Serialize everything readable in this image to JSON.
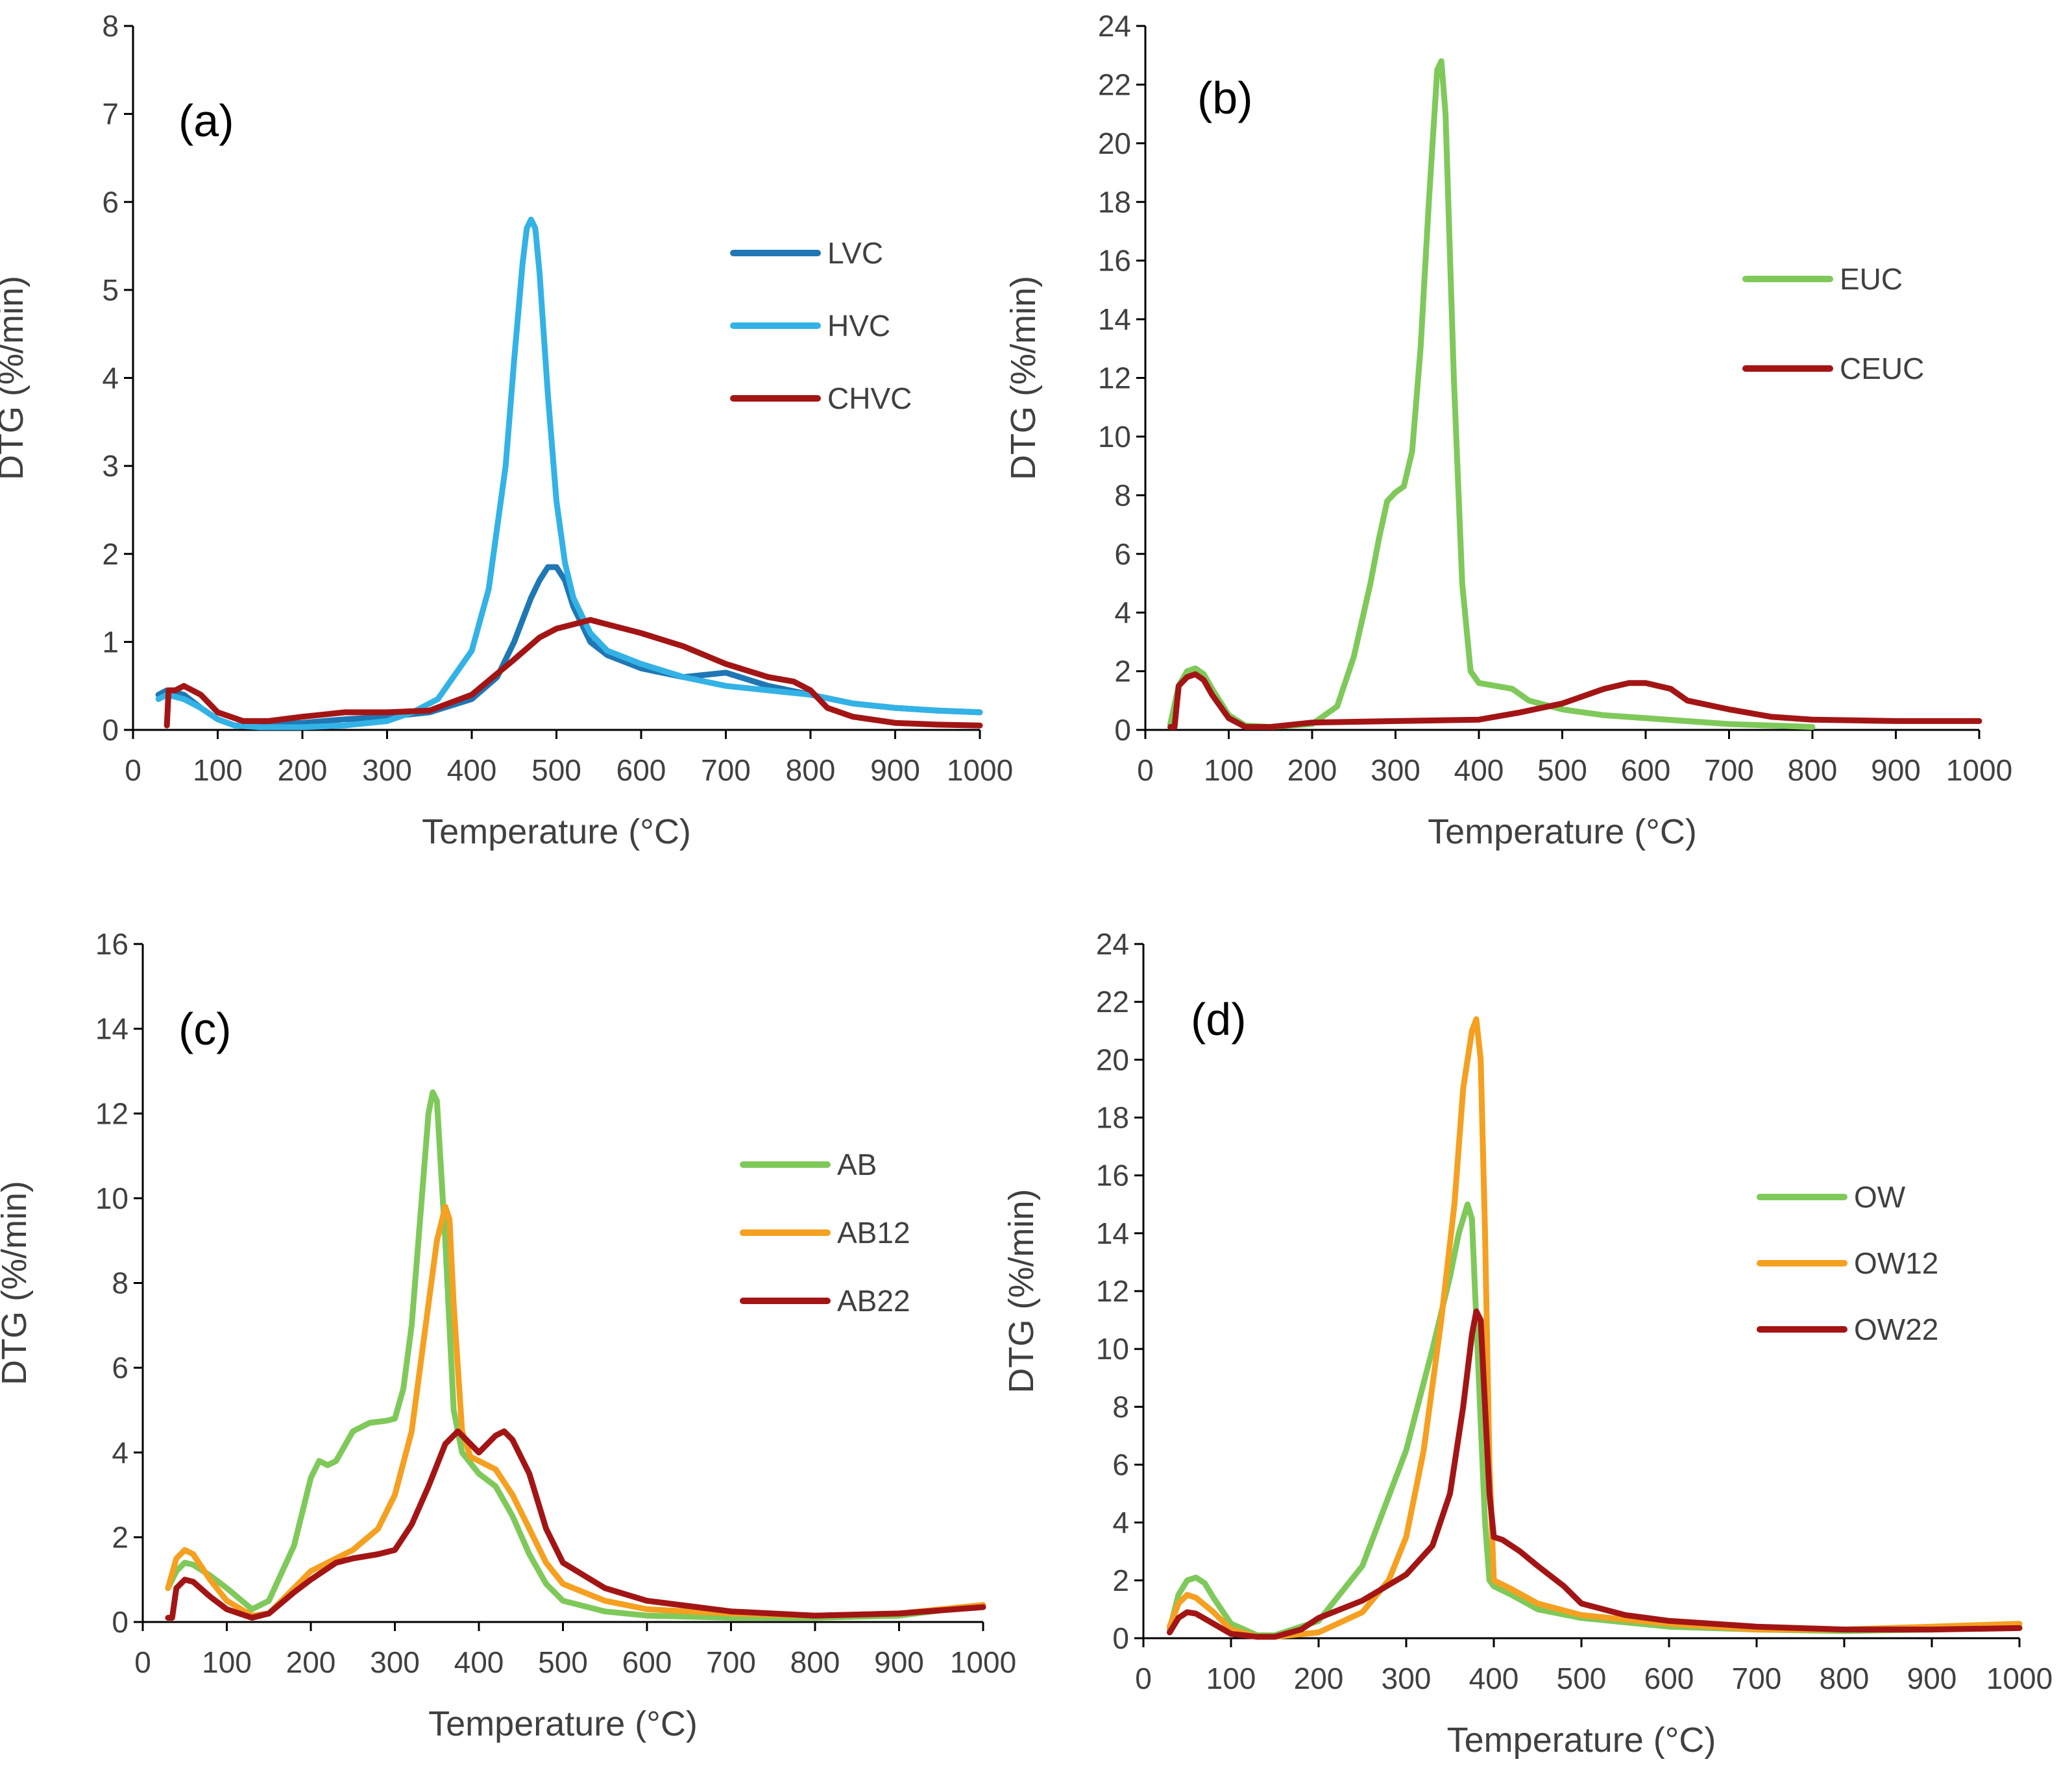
{
  "figure": {
    "panel_count": 4
  },
  "chart_data": [
    {
      "id": "a",
      "type": "line",
      "panel_label": "(a)",
      "xlabel": "Temperature (°C)",
      "ylabel": "DTG (%/min)",
      "xlim": [
        0,
        1000
      ],
      "ylim": [
        0,
        8
      ],
      "xticks": [
        0,
        100,
        200,
        300,
        400,
        500,
        600,
        700,
        800,
        900,
        1000
      ],
      "yticks": [
        0,
        1,
        2,
        3,
        4,
        5,
        6,
        7,
        8
      ],
      "series": [
        {
          "name": "LVC",
          "color": "#1F77B4",
          "x": [
            30,
            40,
            60,
            80,
            100,
            120,
            150,
            200,
            250,
            300,
            350,
            400,
            430,
            450,
            470,
            480,
            490,
            500,
            510,
            520,
            540,
            560,
            600,
            650,
            700,
            750,
            800,
            850,
            900,
            950,
            1000
          ],
          "y": [
            0.4,
            0.45,
            0.4,
            0.25,
            0.12,
            0.05,
            0.05,
            0.08,
            0.12,
            0.15,
            0.2,
            0.35,
            0.6,
            1.0,
            1.5,
            1.7,
            1.85,
            1.85,
            1.7,
            1.4,
            1.0,
            0.85,
            0.7,
            0.6,
            0.65,
            0.5,
            0.4,
            0.3,
            0.25,
            0.22,
            0.2
          ]
        },
        {
          "name": "HVC",
          "color": "#33B2E6",
          "x": [
            30,
            40,
            60,
            80,
            100,
            120,
            150,
            200,
            250,
            300,
            330,
            360,
            400,
            420,
            440,
            450,
            460,
            465,
            470,
            475,
            480,
            490,
            500,
            510,
            520,
            540,
            560,
            600,
            650,
            700,
            750,
            800,
            850,
            900,
            950,
            1000
          ],
          "y": [
            0.35,
            0.4,
            0.35,
            0.25,
            0.12,
            0.05,
            0.03,
            0.03,
            0.05,
            0.1,
            0.2,
            0.35,
            0.9,
            1.6,
            3.0,
            4.2,
            5.3,
            5.7,
            5.8,
            5.7,
            5.2,
            3.8,
            2.6,
            1.9,
            1.5,
            1.1,
            0.9,
            0.75,
            0.6,
            0.5,
            0.45,
            0.4,
            0.3,
            0.25,
            0.22,
            0.2
          ]
        },
        {
          "name": "CHVC",
          "color": "#A31515",
          "x": [
            40,
            42,
            50,
            60,
            80,
            100,
            130,
            160,
            200,
            250,
            300,
            350,
            400,
            450,
            480,
            500,
            520,
            540,
            560,
            600,
            650,
            700,
            750,
            780,
            800,
            820,
            850,
            900,
            950,
            1000
          ],
          "y": [
            0.05,
            0.45,
            0.45,
            0.5,
            0.4,
            0.2,
            0.1,
            0.1,
            0.15,
            0.2,
            0.2,
            0.22,
            0.4,
            0.8,
            1.05,
            1.15,
            1.2,
            1.25,
            1.2,
            1.1,
            0.95,
            0.75,
            0.6,
            0.55,
            0.45,
            0.25,
            0.15,
            0.08,
            0.06,
            0.05
          ]
        }
      ]
    },
    {
      "id": "b",
      "type": "line",
      "panel_label": "(b)",
      "xlabel": "Temperature (°C)",
      "ylabel": "DTG (%/min)",
      "xlim": [
        0,
        1000
      ],
      "ylim": [
        0,
        24
      ],
      "xticks": [
        0,
        100,
        200,
        300,
        400,
        500,
        600,
        700,
        800,
        900,
        1000
      ],
      "yticks": [
        0,
        2,
        4,
        6,
        8,
        10,
        12,
        14,
        16,
        18,
        20,
        22,
        24
      ],
      "series": [
        {
          "name": "EUC",
          "color": "#7FC95A",
          "x": [
            30,
            40,
            50,
            60,
            70,
            80,
            100,
            120,
            150,
            200,
            230,
            250,
            270,
            280,
            290,
            300,
            310,
            320,
            330,
            340,
            350,
            355,
            360,
            370,
            380,
            390,
            400,
            420,
            440,
            460,
            500,
            550,
            600,
            700,
            800
          ],
          "y": [
            0.2,
            1.5,
            2.0,
            2.1,
            1.9,
            1.4,
            0.5,
            0.15,
            0.1,
            0.2,
            0.8,
            2.5,
            5.0,
            6.5,
            7.8,
            8.1,
            8.3,
            9.5,
            13.0,
            18.0,
            22.5,
            22.8,
            21.0,
            12.0,
            5.0,
            2.0,
            1.6,
            1.5,
            1.4,
            1.0,
            0.7,
            0.5,
            0.4,
            0.2,
            0.1
          ]
        },
        {
          "name": "CEUC",
          "color": "#A31515",
          "x": [
            30,
            35,
            40,
            50,
            60,
            70,
            80,
            100,
            120,
            150,
            200,
            300,
            400,
            450,
            500,
            550,
            580,
            600,
            630,
            650,
            700,
            750,
            800,
            900,
            1000
          ],
          "y": [
            0.1,
            0.1,
            1.5,
            1.8,
            1.9,
            1.7,
            1.2,
            0.4,
            0.1,
            0.1,
            0.25,
            0.3,
            0.35,
            0.6,
            0.9,
            1.4,
            1.6,
            1.6,
            1.4,
            1.0,
            0.7,
            0.45,
            0.35,
            0.3,
            0.3
          ]
        }
      ]
    },
    {
      "id": "c",
      "type": "line",
      "panel_label": "(c)",
      "xlabel": "Temperature (°C)",
      "ylabel": "DTG (%/min)",
      "xlim": [
        0,
        1000
      ],
      "ylim": [
        0,
        16
      ],
      "xticks": [
        0,
        100,
        200,
        300,
        400,
        500,
        600,
        700,
        800,
        900,
        1000
      ],
      "yticks": [
        0,
        2,
        4,
        6,
        8,
        10,
        12,
        14,
        16
      ],
      "series": [
        {
          "name": "AB",
          "color": "#7FC95A",
          "x": [
            30,
            40,
            50,
            60,
            80,
            100,
            130,
            150,
            180,
            200,
            210,
            220,
            230,
            250,
            270,
            290,
            300,
            310,
            320,
            330,
            340,
            345,
            350,
            360,
            370,
            380,
            400,
            420,
            440,
            460,
            480,
            500,
            550,
            600,
            700,
            800,
            900,
            1000
          ],
          "y": [
            0.8,
            1.2,
            1.4,
            1.35,
            1.1,
            0.8,
            0.3,
            0.5,
            1.8,
            3.4,
            3.8,
            3.7,
            3.8,
            4.5,
            4.7,
            4.75,
            4.8,
            5.5,
            7.0,
            9.5,
            12.0,
            12.5,
            12.3,
            9.0,
            5.0,
            4.0,
            3.5,
            3.2,
            2.5,
            1.6,
            0.9,
            0.5,
            0.25,
            0.15,
            0.1,
            0.1,
            0.15,
            0.4
          ]
        },
        {
          "name": "AB12",
          "color": "#F5A020",
          "x": [
            30,
            40,
            50,
            60,
            80,
            100,
            130,
            150,
            180,
            200,
            250,
            280,
            300,
            320,
            340,
            350,
            360,
            365,
            370,
            380,
            390,
            400,
            420,
            440,
            460,
            480,
            500,
            550,
            600,
            700,
            800,
            900,
            1000
          ],
          "y": [
            0.8,
            1.5,
            1.7,
            1.6,
            1.0,
            0.5,
            0.15,
            0.2,
            0.8,
            1.2,
            1.7,
            2.2,
            3.0,
            4.5,
            7.5,
            9.0,
            9.8,
            9.5,
            7.5,
            4.5,
            3.9,
            3.8,
            3.6,
            3.0,
            2.2,
            1.4,
            0.9,
            0.5,
            0.3,
            0.2,
            0.15,
            0.2,
            0.4
          ]
        },
        {
          "name": "AB22",
          "color": "#A31515",
          "x": [
            30,
            35,
            40,
            50,
            60,
            80,
            100,
            130,
            150,
            180,
            200,
            230,
            250,
            280,
            300,
            320,
            340,
            360,
            375,
            385,
            400,
            420,
            430,
            440,
            460,
            480,
            500,
            550,
            600,
            700,
            800,
            900,
            1000
          ],
          "y": [
            0.1,
            0.1,
            0.8,
            1.0,
            0.95,
            0.6,
            0.3,
            0.1,
            0.2,
            0.7,
            1.0,
            1.4,
            1.5,
            1.6,
            1.7,
            2.3,
            3.2,
            4.2,
            4.5,
            4.3,
            4.0,
            4.4,
            4.5,
            4.3,
            3.5,
            2.2,
            1.4,
            0.8,
            0.5,
            0.25,
            0.15,
            0.2,
            0.35
          ]
        }
      ]
    },
    {
      "id": "d",
      "type": "line",
      "panel_label": "(d)",
      "xlabel": "Temperature (°C)",
      "ylabel": "DTG (%/min)",
      "xlim": [
        0,
        1000
      ],
      "ylim": [
        0,
        24
      ],
      "xticks": [
        0,
        100,
        200,
        300,
        400,
        500,
        600,
        700,
        800,
        900,
        1000
      ],
      "yticks": [
        0,
        2,
        4,
        6,
        8,
        10,
        12,
        14,
        16,
        18,
        20,
        22,
        24
      ],
      "series": [
        {
          "name": "OW",
          "color": "#7FC95A",
          "x": [
            30,
            40,
            50,
            60,
            70,
            80,
            100,
            130,
            150,
            200,
            250,
            300,
            330,
            350,
            360,
            370,
            375,
            380,
            390,
            395,
            400,
            420,
            450,
            500,
            600,
            700,
            800,
            900,
            1000
          ],
          "y": [
            0.3,
            1.5,
            2.0,
            2.1,
            1.9,
            1.4,
            0.5,
            0.1,
            0.1,
            0.6,
            2.5,
            6.5,
            10.0,
            12.5,
            14.0,
            15.0,
            14.5,
            11.0,
            4.0,
            2.0,
            1.8,
            1.5,
            1.0,
            0.7,
            0.4,
            0.3,
            0.25,
            0.3,
            0.4
          ]
        },
        {
          "name": "OW12",
          "color": "#F5A020",
          "x": [
            30,
            40,
            50,
            60,
            80,
            100,
            130,
            150,
            200,
            250,
            280,
            300,
            320,
            340,
            355,
            365,
            375,
            380,
            385,
            390,
            395,
            400,
            420,
            450,
            500,
            600,
            700,
            800,
            900,
            1000
          ],
          "y": [
            0.4,
            1.2,
            1.5,
            1.4,
            0.9,
            0.3,
            0.05,
            0.05,
            0.2,
            0.9,
            2.0,
            3.5,
            6.5,
            11.0,
            15.0,
            19.0,
            21.0,
            21.4,
            20.0,
            14.0,
            6.0,
            2.0,
            1.7,
            1.2,
            0.8,
            0.5,
            0.3,
            0.3,
            0.4,
            0.5
          ]
        },
        {
          "name": "OW22",
          "color": "#A31515",
          "x": [
            30,
            40,
            50,
            60,
            80,
            100,
            130,
            150,
            180,
            200,
            250,
            300,
            330,
            350,
            365,
            375,
            380,
            385,
            390,
            395,
            400,
            410,
            430,
            450,
            480,
            500,
            550,
            600,
            700,
            800,
            900,
            1000
          ],
          "y": [
            0.2,
            0.7,
            0.9,
            0.85,
            0.5,
            0.15,
            0.05,
            0.05,
            0.3,
            0.7,
            1.3,
            2.2,
            3.2,
            5.0,
            8.0,
            10.5,
            11.3,
            11.0,
            8.0,
            5.0,
            3.5,
            3.4,
            3.0,
            2.5,
            1.8,
            1.2,
            0.8,
            0.6,
            0.4,
            0.3,
            0.3,
            0.35
          ]
        }
      ]
    }
  ]
}
